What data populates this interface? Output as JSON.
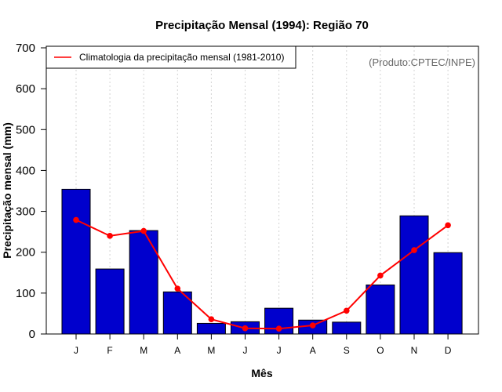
{
  "chart_data": {
    "type": "bar",
    "title": "Precipitação Mensal (1994): Região 70",
    "xlabel": "Mês",
    "ylabel": "Precipitação mensal (mm)",
    "ylim": [
      0,
      700
    ],
    "yticks": [
      0,
      100,
      200,
      300,
      400,
      500,
      600,
      700
    ],
    "categories": [
      "J",
      "F",
      "M",
      "A",
      "M",
      "J",
      "J",
      "A",
      "S",
      "O",
      "N",
      "D"
    ],
    "grid": "vertical dotted",
    "series": [
      {
        "name": "Precipitação mensal (1994)",
        "type": "bar",
        "color": "#0000CD",
        "values": [
          354,
          159,
          253,
          103,
          26,
          30,
          63,
          34,
          29,
          120,
          289,
          199
        ]
      },
      {
        "name": "Climatologia da precipitação mensal (1981-2010)",
        "type": "line",
        "color": "#FF0000",
        "values": [
          279,
          240,
          252,
          111,
          36,
          14,
          13,
          21,
          57,
          143,
          205,
          266
        ]
      }
    ],
    "legend": {
      "placement": "top-left",
      "entries": [
        "Climatologia da precipitação mensal (1981-2010)"
      ]
    },
    "annotation": "(Produto:CPTEC/INPE)"
  }
}
